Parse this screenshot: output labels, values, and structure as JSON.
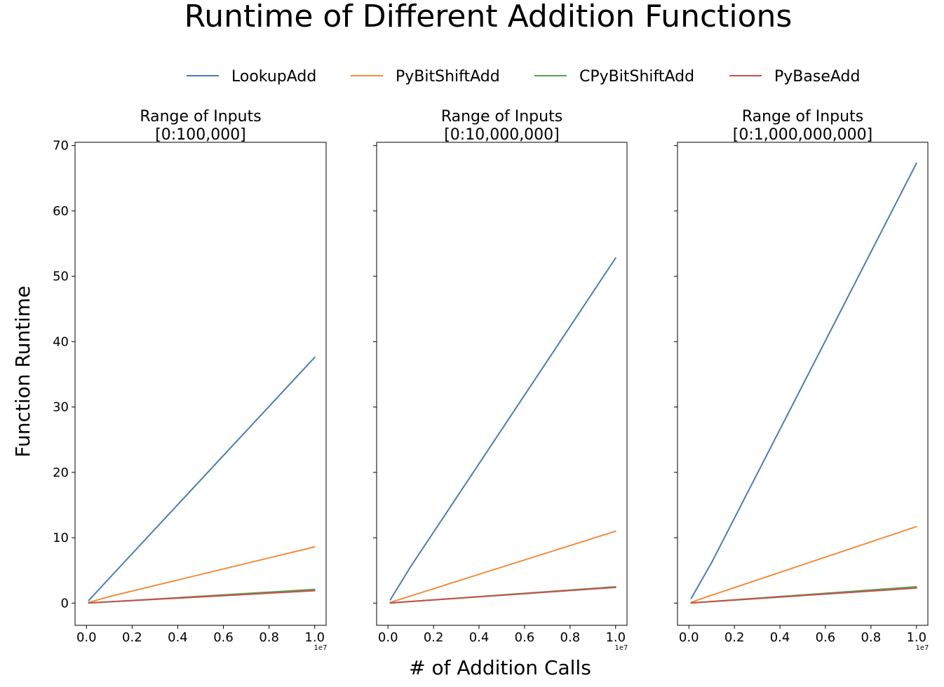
{
  "chart_data": {
    "type": "line",
    "title": "Runtime of Different Addition Functions",
    "xlabel": "# of Addition Calls",
    "ylabel": "Function Runtime",
    "x_offset_label": "1e7",
    "legend_position": "top-center",
    "grid": false,
    "xlim": [
      -0.05,
      1.05
    ],
    "ylim": [
      -3.4,
      70.5
    ],
    "x_ticks": [
      0.0,
      0.2,
      0.4,
      0.6,
      0.8,
      1.0
    ],
    "x_tick_labels": [
      "0.0",
      "0.2",
      "0.4",
      "0.6",
      "0.8",
      "1.0"
    ],
    "y_ticks": [
      0,
      10,
      20,
      30,
      40,
      50,
      60,
      70
    ],
    "y_tick_labels": [
      "0",
      "10",
      "20",
      "30",
      "40",
      "50",
      "60",
      "70"
    ],
    "legend": [
      {
        "name": "LookupAdd",
        "color": "#4c7cb4"
      },
      {
        "name": "PyBitShiftAdd",
        "color": "#f28c3c"
      },
      {
        "name": "CPyBitShiftAdd",
        "color": "#55a155"
      },
      {
        "name": "PyBaseAdd",
        "color": "#c8504a"
      }
    ],
    "subplots": [
      {
        "title_line1": "Range of Inputs",
        "title_line2": "[0:100,000]",
        "show_y_tick_labels": true,
        "series": [
          {
            "name": "LookupAdd",
            "x": [
              0.01,
              0.1,
              1.0
            ],
            "y": [
              0.4,
              3.8,
              37.6
            ]
          },
          {
            "name": "PyBitShiftAdd",
            "x": [
              0.01,
              0.1,
              1.0
            ],
            "y": [
              0.1,
              1.0,
              8.6
            ]
          },
          {
            "name": "CPyBitShiftAdd",
            "x": [
              0.01,
              0.1,
              1.0
            ],
            "y": [
              0.02,
              0.2,
              2.1
            ]
          },
          {
            "name": "PyBaseAdd",
            "x": [
              0.01,
              0.1,
              1.0
            ],
            "y": [
              0.02,
              0.19,
              1.9
            ]
          }
        ]
      },
      {
        "title_line1": "Range of Inputs",
        "title_line2": "[0:10,000,000]",
        "show_y_tick_labels": false,
        "series": [
          {
            "name": "LookupAdd",
            "x": [
              0.01,
              0.1,
              1.0
            ],
            "y": [
              0.5,
              5.6,
              52.8
            ]
          },
          {
            "name": "PyBitShiftAdd",
            "x": [
              0.01,
              0.1,
              1.0
            ],
            "y": [
              0.1,
              1.1,
              11.0
            ]
          },
          {
            "name": "CPyBitShiftAdd",
            "x": [
              0.01,
              0.1,
              1.0
            ],
            "y": [
              0.02,
              0.24,
              2.5
            ]
          },
          {
            "name": "PyBaseAdd",
            "x": [
              0.01,
              0.1,
              1.0
            ],
            "y": [
              0.02,
              0.24,
              2.4
            ]
          }
        ]
      },
      {
        "title_line1": "Range of Inputs",
        "title_line2": "[0:1,000,000,000]",
        "show_y_tick_labels": false,
        "series": [
          {
            "name": "LookupAdd",
            "x": [
              0.01,
              0.1,
              1.0
            ],
            "y": [
              0.7,
              6.2,
              67.3
            ]
          },
          {
            "name": "PyBitShiftAdd",
            "x": [
              0.01,
              0.1,
              1.0
            ],
            "y": [
              0.12,
              1.2,
              11.7
            ]
          },
          {
            "name": "CPyBitShiftAdd",
            "x": [
              0.01,
              0.1,
              1.0
            ],
            "y": [
              0.02,
              0.25,
              2.5
            ]
          },
          {
            "name": "PyBaseAdd",
            "x": [
              0.01,
              0.1,
              1.0
            ],
            "y": [
              0.02,
              0.23,
              2.3
            ]
          }
        ]
      }
    ]
  }
}
